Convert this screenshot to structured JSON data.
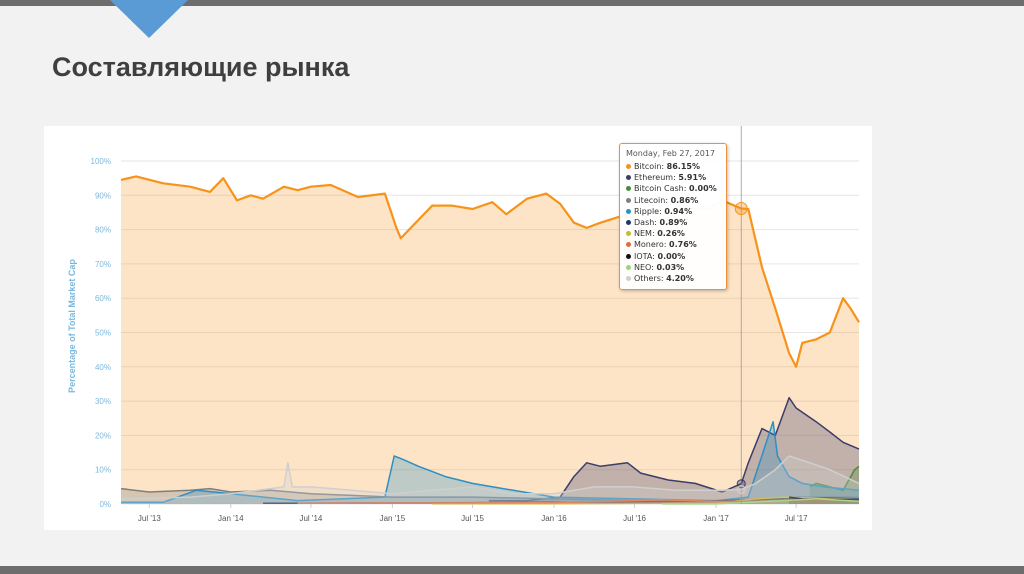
{
  "slide": {
    "title": "Составляющие рынка",
    "accent_color": "#5b9bd5"
  },
  "chart_data": {
    "type": "area",
    "title": "",
    "xlabel": "",
    "ylabel": "Percentage of Total Market Cap",
    "ylim": [
      0,
      100
    ],
    "y_ticks": [
      "0%",
      "10%",
      "20%",
      "30%",
      "40%",
      "50%",
      "60%",
      "70%",
      "80%",
      "90%",
      "100%"
    ],
    "x_ticks": [
      "Jul '13",
      "Jan '14",
      "Jul '14",
      "Jan '15",
      "Jul '15",
      "Jan '16",
      "Jul '16",
      "Jan '17",
      "Jul '17"
    ],
    "grid": true,
    "series": [
      {
        "name": "Bitcoin",
        "color": "#f7931a",
        "x": [
          "2013-04-28",
          "2013-06-01",
          "2013-08-01",
          "2013-10-01",
          "2013-11-15",
          "2013-12-15",
          "2014-01-15",
          "2014-02-15",
          "2014-03-15",
          "2014-05-01",
          "2014-06-01",
          "2014-07-01",
          "2014-08-15",
          "2014-10-15",
          "2014-12-15",
          "2015-01-10",
          "2015-01-20",
          "2015-02-15",
          "2015-04-01",
          "2015-05-15",
          "2015-07-01",
          "2015-08-15",
          "2015-09-15",
          "2015-11-01",
          "2015-12-15",
          "2016-01-15",
          "2016-02-15",
          "2016-03-15",
          "2016-04-15",
          "2016-06-15",
          "2016-07-15",
          "2016-09-01",
          "2016-10-15",
          "2016-12-15",
          "2017-01-15",
          "2017-02-27",
          "2017-03-15",
          "2017-04-15",
          "2017-05-15",
          "2017-06-15",
          "2017-07-01",
          "2017-07-15",
          "2017-08-15",
          "2017-09-15",
          "2017-10-15",
          "2017-11-01",
          "2017-11-20"
        ],
        "values": [
          94.5,
          95.5,
          93.5,
          92.5,
          91,
          95,
          88.5,
          90,
          89,
          92.5,
          91.5,
          92.5,
          93,
          89.5,
          90.5,
          80.5,
          77.5,
          81,
          87,
          87,
          86,
          88,
          84.5,
          89,
          90.5,
          87.5,
          82,
          80.5,
          82,
          84.5,
          80.5,
          82,
          86.5,
          86,
          88.5,
          86.15,
          86,
          69,
          57,
          44,
          40,
          47,
          48,
          50,
          60,
          57,
          53
        ]
      },
      {
        "name": "Ethereum",
        "color": "#3b3d6b",
        "x": [
          "2015-08-07",
          "2015-11-01",
          "2016-01-15",
          "2016-02-15",
          "2016-03-15",
          "2016-04-15",
          "2016-06-15",
          "2016-07-15",
          "2016-09-15",
          "2016-11-15",
          "2017-01-15",
          "2017-02-27",
          "2017-03-15",
          "2017-04-15",
          "2017-05-15",
          "2017-06-15",
          "2017-07-01",
          "2017-08-15",
          "2017-09-15",
          "2017-10-15",
          "2017-11-20"
        ],
        "values": [
          1,
          1,
          2,
          8,
          12,
          11,
          12,
          9,
          7,
          6,
          3.5,
          5.91,
          12,
          22,
          20,
          31,
          28,
          24,
          21,
          18,
          16
        ]
      },
      {
        "name": "Bitcoin Cash",
        "color": "#4c8a3c",
        "x": [
          "2017-08-01",
          "2017-08-15",
          "2017-09-15",
          "2017-10-15",
          "2017-11-10",
          "2017-11-20"
        ],
        "values": [
          5,
          6,
          5,
          4,
          10,
          11
        ]
      },
      {
        "name": "Litecoin",
        "color": "#7f7f7f",
        "x": [
          "2013-04-28",
          "2013-07-01",
          "2013-10-01",
          "2013-11-15",
          "2014-01-01",
          "2014-04-01",
          "2014-07-01",
          "2014-10-01",
          "2015-01-01",
          "2015-07-01",
          "2016-01-01",
          "2016-07-01",
          "2017-01-01",
          "2017-04-01",
          "2017-07-01",
          "2017-10-01",
          "2017-11-20"
        ],
        "values": [
          4.5,
          3.5,
          4,
          4.5,
          3.5,
          4,
          3,
          2.5,
          2,
          2,
          1.5,
          1,
          0.8,
          1.5,
          2,
          2,
          2
        ]
      },
      {
        "name": "Ripple",
        "color": "#2d8fc5",
        "x": [
          "2013-04-28",
          "2013-08-01",
          "2013-10-15",
          "2014-01-01",
          "2014-06-01",
          "2014-12-15",
          "2015-01-05",
          "2015-01-25",
          "2015-03-01",
          "2015-05-01",
          "2015-07-01",
          "2015-10-01",
          "2016-01-01",
          "2016-07-01",
          "2017-01-01",
          "2017-03-15",
          "2017-05-10",
          "2017-05-20",
          "2017-06-15",
          "2017-07-15",
          "2017-09-01",
          "2017-11-20"
        ],
        "values": [
          0.5,
          0.5,
          4,
          3,
          1,
          2,
          14,
          13,
          11,
          8,
          6,
          4,
          2,
          1.5,
          1,
          2,
          24,
          14,
          8,
          6,
          5,
          4
        ]
      },
      {
        "name": "Dash",
        "color": "#1c3966",
        "x": [
          "2014-03-15",
          "2015-01-01",
          "2016-01-01",
          "2016-07-01",
          "2017-01-01",
          "2017-03-15",
          "2017-06-01",
          "2017-09-01",
          "2017-11-20"
        ],
        "values": [
          0.2,
          0.3,
          0.5,
          0.6,
          0.9,
          1.2,
          1.5,
          1.8,
          1.5
        ]
      },
      {
        "name": "NEM",
        "color": "#cdb82f",
        "x": [
          "2015-04-01",
          "2016-01-01",
          "2017-01-01",
          "2017-04-01",
          "2017-06-01",
          "2017-11-20"
        ],
        "values": [
          0.1,
          0.1,
          0.26,
          1.5,
          2,
          1.2
        ]
      },
      {
        "name": "Monero",
        "color": "#e8683c",
        "x": [
          "2014-06-01",
          "2015-01-01",
          "2016-01-01",
          "2016-09-01",
          "2017-01-01",
          "2017-06-01",
          "2017-11-20"
        ],
        "values": [
          0.2,
          0.3,
          0.4,
          1.2,
          0.76,
          0.8,
          1.1
        ]
      },
      {
        "name": "IOTA",
        "color": "#111111",
        "x": [
          "2017-06-15",
          "2017-07-15",
          "2017-09-15",
          "2017-11-20"
        ],
        "values": [
          2,
          1.5,
          1.3,
          1.2
        ]
      },
      {
        "name": "NEO",
        "color": "#9bd47a",
        "x": [
          "2016-09-01",
          "2017-01-01",
          "2017-06-01",
          "2017-08-15",
          "2017-11-20"
        ],
        "values": [
          0.02,
          0.03,
          1,
          1.5,
          0.8
        ]
      },
      {
        "name": "Others",
        "color": "#cfcfcf",
        "x": [
          "2013-04-28",
          "2013-10-01",
          "2014-01-01",
          "2014-05-01",
          "2014-05-10",
          "2014-05-20",
          "2014-07-01",
          "2014-10-01",
          "2015-01-01",
          "2015-04-01",
          "2015-07-01",
          "2015-10-01",
          "2016-01-01",
          "2016-04-01",
          "2016-07-01",
          "2016-10-01",
          "2017-01-01",
          "2017-02-27",
          "2017-04-01",
          "2017-05-15",
          "2017-06-15",
          "2017-08-01",
          "2017-09-15",
          "2017-11-20"
        ],
        "values": [
          1.5,
          2,
          3,
          5,
          12,
          5,
          5,
          4,
          3,
          4,
          5,
          3,
          3,
          5,
          5,
          4,
          4,
          4.2,
          6,
          10,
          14,
          12,
          10,
          6
        ]
      }
    ],
    "tooltip": {
      "date": "Monday, Feb 27, 2017",
      "rows": [
        {
          "name": "Bitcoin",
          "value": "86.15%"
        },
        {
          "name": "Ethereum",
          "value": "5.91%"
        },
        {
          "name": "Bitcoin Cash",
          "value": "0.00%"
        },
        {
          "name": "Litecoin",
          "value": "0.86%"
        },
        {
          "name": "Ripple",
          "value": "0.94%"
        },
        {
          "name": "Dash",
          "value": "0.89%"
        },
        {
          "name": "NEM",
          "value": "0.26%"
        },
        {
          "name": "Monero",
          "value": "0.76%"
        },
        {
          "name": "IOTA",
          "value": "0.00%"
        },
        {
          "name": "NEO",
          "value": "0.03%"
        },
        {
          "name": "Others",
          "value": "4.20%"
        }
      ]
    }
  }
}
